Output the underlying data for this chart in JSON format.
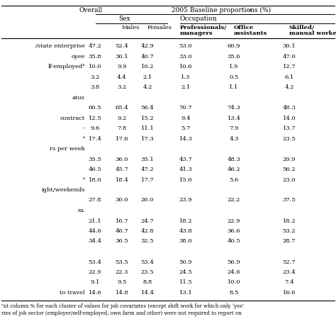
{
  "data": [
    [
      "/state enterprise",
      47.2,
      52.4,
      42.9,
      53.0,
      60.9,
      30.1
    ],
    [
      "oyee",
      35.8,
      30.1,
      40.7,
      33.0,
      35.6,
      47.0
    ],
    [
      "lf-employedᵇ",
      10.0,
      9.9,
      10.2,
      10.6,
      1.9,
      12.7
    ],
    [
      "",
      3.2,
      4.4,
      2.1,
      1.3,
      0.5,
      6.1
    ],
    [
      "",
      3.8,
      3.2,
      4.2,
      2.1,
      1.1,
      4.2
    ],
    [
      "atus",
      null,
      null,
      null,
      null,
      null,
      null
    ],
    [
      "",
      60.5,
      65.4,
      56.4,
      70.7,
      74.3,
      48.3
    ],
    [
      "contract",
      12.5,
      9.2,
      15.2,
      9.4,
      13.4,
      14.0
    ],
    [
      "-",
      9.6,
      7.8,
      11.1,
      5.7,
      7.9,
      13.7
    ],
    [
      "ᵇ",
      17.4,
      17.6,
      17.3,
      14.3,
      4.3,
      23.5
    ],
    [
      "rs per week",
      null,
      null,
      null,
      null,
      null,
      null
    ],
    [
      "",
      35.5,
      36.0,
      35.1,
      43.7,
      48.3,
      20.9
    ],
    [
      "",
      46.5,
      45.7,
      47.2,
      41.3,
      46.2,
      56.2
    ],
    [
      "ᵇ",
      18.0,
      18.4,
      17.7,
      15.0,
      5.6,
      23.0
    ],
    [
      "ight/weekends",
      null,
      null,
      null,
      null,
      null,
      null
    ],
    [
      "",
      27.8,
      30.0,
      26.0,
      23.9,
      22.2,
      37.5
    ],
    [
      "m.",
      null,
      null,
      null,
      null,
      null,
      null
    ],
    [
      "",
      21.1,
      16.7,
      24.7,
      18.2,
      22.9,
      18.2
    ],
    [
      "",
      44.6,
      46.7,
      42.8,
      43.8,
      36.6,
      53.2
    ],
    [
      "",
      34.4,
      36.5,
      32.5,
      38.0,
      40.5,
      28.7
    ],
    [
      "",
      null,
      null,
      null,
      null,
      null,
      null
    ],
    [
      "",
      53.4,
      53.5,
      53.4,
      50.9,
      56.9,
      52.7
    ],
    [
      "",
      22.9,
      22.3,
      23.5,
      24.5,
      24.6,
      23.4
    ],
    [
      "",
      9.1,
      9.5,
      8.8,
      11.5,
      10.0,
      7.4
    ],
    [
      "to travel",
      14.6,
      14.8,
      14.4,
      13.1,
      8.5,
      16.6
    ]
  ],
  "footnote1": "ᵉnt column % for each cluster of values for job covariates (except shift work for which only ‘yes’",
  "footnote2": "ries of job sector (employer/self-employed, own farm and other) were not required to report on"
}
